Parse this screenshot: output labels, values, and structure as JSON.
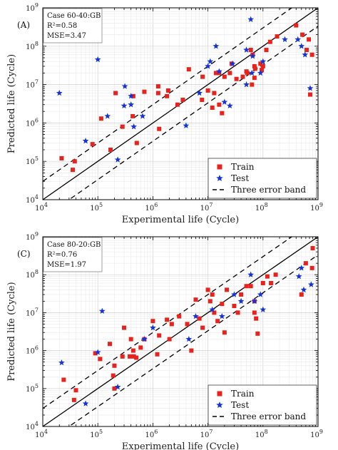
{
  "chart_data": [
    {
      "type": "scatter",
      "panel_label": "(A)",
      "info": [
        "Case 60-40:GB",
        "R²=0.58",
        "MSE=3.47"
      ],
      "xlabel": "Experimental life (Cycle)",
      "ylabel": "Predicted life (Cycle)",
      "x_scale": "log",
      "y_scale": "log",
      "xlim": [
        10000,
        1000000000
      ],
      "ylim": [
        10000,
        1000000000
      ],
      "x_ticks": [
        {
          "b": "10",
          "e": "4"
        },
        {
          "b": "10",
          "e": "5"
        },
        {
          "b": "10",
          "e": "6"
        },
        {
          "b": "10",
          "e": "7"
        },
        {
          "b": "10",
          "e": "8"
        },
        {
          "b": "10",
          "e": "9"
        }
      ],
      "y_ticks": [
        {
          "b": "10",
          "e": "4"
        },
        {
          "b": "10",
          "e": "5"
        },
        {
          "b": "10",
          "e": "6"
        },
        {
          "b": "10",
          "e": "7"
        },
        {
          "b": "10",
          "e": "8"
        },
        {
          "b": "10",
          "e": "9"
        }
      ],
      "grid": true,
      "legend_position": "bottom-right",
      "legend": [
        {
          "marker": "square",
          "color": "#e8231d",
          "label": "Train"
        },
        {
          "marker": "star",
          "color": "#1533d6",
          "label": "Test"
        },
        {
          "marker": "dash",
          "color": "#000000",
          "label": "Three error band"
        }
      ],
      "error_band_factor": 3,
      "series": [
        {
          "name": "Train",
          "marker": "square",
          "color": "#e8231d",
          "points": [
            [
              22000,
              120000
            ],
            [
              35000,
              60000
            ],
            [
              38000,
              100000
            ],
            [
              80000,
              280000
            ],
            [
              115000,
              1300000
            ],
            [
              170000,
              200000
            ],
            [
              210000,
              6000000
            ],
            [
              280000,
              800000
            ],
            [
              430000,
              1500000
            ],
            [
              440000,
              5000000
            ],
            [
              510000,
              300000
            ],
            [
              700000,
              6500000
            ],
            [
              1250000,
              9000000
            ],
            [
              1250000,
              6000000
            ],
            [
              1300000,
              700000
            ],
            [
              1800000,
              5000000
            ],
            [
              1900000,
              7000000
            ],
            [
              2800000,
              3000000
            ],
            [
              3500000,
              4000000
            ],
            [
              4500000,
              25000000
            ],
            [
              7800000,
              4000000
            ],
            [
              8000000,
              16000000
            ],
            [
              10000000,
              7000000
            ],
            [
              12000000,
              2500000
            ],
            [
              13000000,
              6000000
            ],
            [
              14000000,
              20000000
            ],
            [
              16000000,
              3000000
            ],
            [
              16000000,
              20000000
            ],
            [
              18000000,
              1800000
            ],
            [
              20000000,
              16000000
            ],
            [
              25000000,
              20000000
            ],
            [
              27000000,
              35000000
            ],
            [
              33000000,
              14000000
            ],
            [
              43000000,
              16000000
            ],
            [
              50000000,
              22000000
            ],
            [
              52000000,
              20000000
            ],
            [
              60000000,
              80000000
            ],
            [
              63000000,
              10000000
            ],
            [
              65000000,
              60000000
            ],
            [
              70000000,
              15000000
            ],
            [
              70000000,
              30000000
            ],
            [
              72000000,
              26000000
            ],
            [
              90000000,
              35000000
            ],
            [
              95000000,
              24000000
            ],
            [
              100000000,
              30000000
            ],
            [
              115000000,
              80000000
            ],
            [
              135000000,
              130000000
            ],
            [
              180000000,
              180000000
            ],
            [
              400000000,
              350000000
            ],
            [
              520000000,
              200000000
            ],
            [
              620000000,
              80000000
            ],
            [
              680000000,
              150000000
            ],
            [
              720000000,
              5500000
            ],
            [
              780000000,
              60000000
            ]
          ]
        },
        {
          "name": "Test",
          "marker": "star",
          "color": "#1533d6",
          "points": [
            [
              20000,
              6000000
            ],
            [
              60000,
              340000
            ],
            [
              100000,
              45000000
            ],
            [
              150000,
              1500000
            ],
            [
              230000,
              110000
            ],
            [
              300000,
              2800000
            ],
            [
              310000,
              9000000
            ],
            [
              400000,
              5000000
            ],
            [
              400000,
              3000000
            ],
            [
              450000,
              800000
            ],
            [
              650000,
              1500000
            ],
            [
              4000000,
              850000
            ],
            [
              7000000,
              6000000
            ],
            [
              10000000,
              30000000
            ],
            [
              11000000,
              40000000
            ],
            [
              14000000,
              100000000
            ],
            [
              16000000,
              22000000
            ],
            [
              20000000,
              3500000
            ],
            [
              25000000,
              2800000
            ],
            [
              28000000,
              35000000
            ],
            [
              50000000,
              80000000
            ],
            [
              50000000,
              10000000
            ],
            [
              60000000,
              500000000
            ],
            [
              63000000,
              20000000
            ],
            [
              65000000,
              55000000
            ],
            [
              90000000,
              20000000
            ],
            [
              100000000,
              40000000
            ],
            [
              250000000,
              150000000
            ],
            [
              430000000,
              150000000
            ],
            [
              500000000,
              100000000
            ],
            [
              580000000,
              60000000
            ],
            [
              720000000,
              8000000
            ]
          ]
        }
      ]
    },
    {
      "type": "scatter",
      "panel_label": "(C)",
      "info": [
        "Case 80-20:GB",
        "R²=0.76",
        "MSE=1.97"
      ],
      "xlabel": "Experimental life (Cycle)",
      "ylabel": "Predicted life (Cycle)",
      "x_scale": "log",
      "y_scale": "log",
      "xlim": [
        10000,
        1000000000
      ],
      "ylim": [
        10000,
        1000000000
      ],
      "x_ticks": [
        {
          "b": "10",
          "e": "4"
        },
        {
          "b": "10",
          "e": "5"
        },
        {
          "b": "10",
          "e": "6"
        },
        {
          "b": "10",
          "e": "7"
        },
        {
          "b": "10",
          "e": "8"
        },
        {
          "b": "10",
          "e": "9"
        }
      ],
      "y_ticks": [
        {
          "b": "10",
          "e": "4"
        },
        {
          "b": "10",
          "e": "5"
        },
        {
          "b": "10",
          "e": "6"
        },
        {
          "b": "10",
          "e": "7"
        },
        {
          "b": "10",
          "e": "8"
        },
        {
          "b": "10",
          "e": "9"
        }
      ],
      "grid": true,
      "legend_position": "bottom-right",
      "legend": [
        {
          "marker": "square",
          "color": "#e8231d",
          "label": "Train"
        },
        {
          "marker": "star",
          "color": "#1533d6",
          "label": "Test"
        },
        {
          "marker": "dash",
          "color": "#000000",
          "label": "Three error band"
        }
      ],
      "error_band_factor": 3,
      "series": [
        {
          "name": "Train",
          "marker": "square",
          "color": "#e8231d",
          "points": [
            [
              24000,
              170000
            ],
            [
              37000,
              50000
            ],
            [
              40000,
              90000
            ],
            [
              90000,
              850000
            ],
            [
              110000,
              600000
            ],
            [
              165000,
              1500000
            ],
            [
              190000,
              220000
            ],
            [
              200000,
              400000
            ],
            [
              200000,
              100000
            ],
            [
              280000,
              700000
            ],
            [
              300000,
              4000000
            ],
            [
              380000,
              700000
            ],
            [
              400000,
              2000000
            ],
            [
              440000,
              1000000
            ],
            [
              450000,
              700000
            ],
            [
              500000,
              650000
            ],
            [
              600000,
              1200000
            ],
            [
              700000,
              2000000
            ],
            [
              1000000,
              6000000
            ],
            [
              1200000,
              800000
            ],
            [
              1300000,
              2500000
            ],
            [
              1800000,
              6500000
            ],
            [
              2000000,
              2000000
            ],
            [
              2200000,
              5000000
            ],
            [
              3000000,
              8000000
            ],
            [
              4200000,
              5000000
            ],
            [
              5000000,
              1000000
            ],
            [
              6000000,
              22000000
            ],
            [
              7000000,
              7000000
            ],
            [
              8000000,
              4000000
            ],
            [
              10000000,
              40000000
            ],
            [
              11000000,
              20000000
            ],
            [
              12000000,
              30000000
            ],
            [
              13000000,
              10000000
            ],
            [
              15000000,
              6000000
            ],
            [
              18000000,
              17000000
            ],
            [
              20000000,
              3000000
            ],
            [
              22000000,
              40000000
            ],
            [
              30000000,
              15000000
            ],
            [
              35000000,
              10000000
            ],
            [
              40000000,
              30000000
            ],
            [
              50000000,
              50000000
            ],
            [
              60000000,
              50000000
            ],
            [
              70000000,
              10000000
            ],
            [
              70000000,
              20000000
            ],
            [
              75000000,
              7000000
            ],
            [
              80000000,
              2800000
            ],
            [
              100000000,
              60000000
            ],
            [
              120000000,
              90000000
            ],
            [
              140000000,
              60000000
            ],
            [
              170000000,
              100000000
            ],
            [
              500000000,
              30000000
            ],
            [
              600000000,
              200000000
            ],
            [
              780000000,
              150000000
            ],
            [
              800000000,
              500000000
            ]
          ]
        },
        {
          "name": "Test",
          "marker": "star",
          "color": "#1533d6",
          "points": [
            [
              22000,
              480000
            ],
            [
              60000,
              40000
            ],
            [
              100000,
              900000
            ],
            [
              120000,
              11000000
            ],
            [
              230000,
              110000
            ],
            [
              700000,
              2000000
            ],
            [
              1000000,
              4000000
            ],
            [
              4500000,
              2000000
            ],
            [
              6000000,
              8000000
            ],
            [
              12000000,
              12000000
            ],
            [
              18000000,
              8000000
            ],
            [
              30000000,
              30000000
            ],
            [
              40000000,
              20000000
            ],
            [
              60000000,
              100000000
            ],
            [
              70000000,
              20000000
            ],
            [
              90000000,
              30000000
            ],
            [
              100000000,
              12000000
            ],
            [
              450000000,
              90000000
            ],
            [
              500000000,
              150000000
            ],
            [
              550000000,
              40000000
            ],
            [
              750000000,
              55000000
            ]
          ]
        }
      ]
    }
  ]
}
